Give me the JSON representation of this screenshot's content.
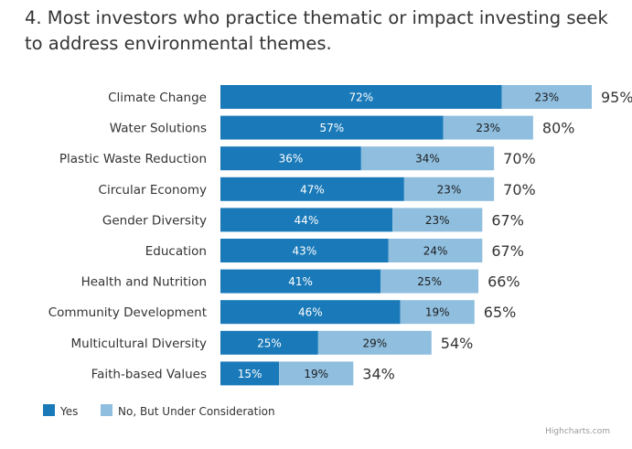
{
  "chart_data": {
    "type": "bar",
    "orientation": "horizontal",
    "stacked": true,
    "title": "4. Most investors who practice thematic or impact investing seek to address environmental themes.",
    "categories": [
      "Climate Change",
      "Water Solutions",
      "Plastic Waste Reduction",
      "Circular Economy",
      "Gender Diversity",
      "Education",
      "Health and Nutrition",
      "Community Development",
      "Multicultural Diversity",
      "Faith-based Values"
    ],
    "series": [
      {
        "name": "Yes",
        "color": "#1a7ab9",
        "values": [
          72,
          57,
          36,
          47,
          44,
          43,
          41,
          46,
          25,
          15
        ]
      },
      {
        "name": "No, But Under Consideration",
        "color": "#8fbedf",
        "values": [
          23,
          23,
          34,
          23,
          23,
          24,
          25,
          19,
          29,
          19
        ]
      }
    ],
    "totals": [
      95,
      80,
      70,
      70,
      67,
      67,
      66,
      65,
      54,
      34
    ],
    "value_suffix": "%",
    "xlim": [
      0,
      95
    ],
    "grid": false,
    "legend_position": "bottom-left",
    "credits": "Highcharts.com"
  }
}
